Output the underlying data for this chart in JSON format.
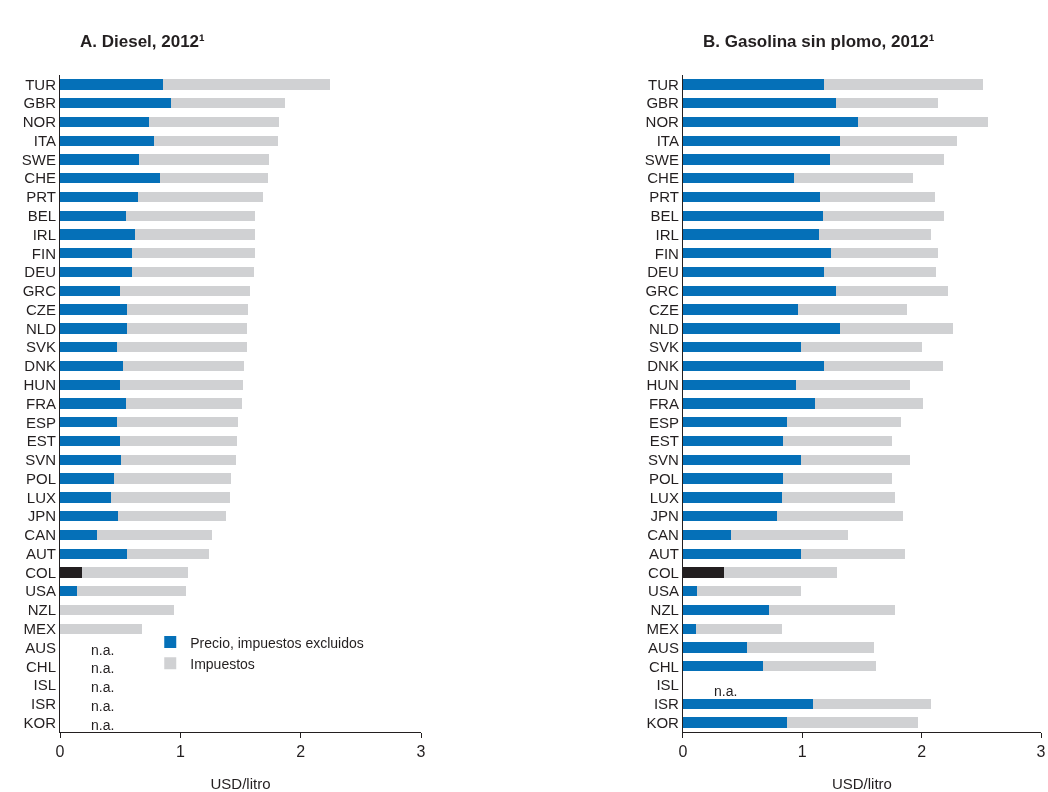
{
  "chart_data": [
    {
      "type": "bar",
      "orientation": "horizontal",
      "stacked": true,
      "title": "A. Diesel, 2012¹",
      "xlabel": "USD/litro",
      "categories": [
        "TUR",
        "GBR",
        "NOR",
        "ITA",
        "SWE",
        "CHE",
        "PRT",
        "BEL",
        "IRL",
        "FIN",
        "DEU",
        "GRC",
        "CZE",
        "NLD",
        "SVK",
        "DNK",
        "HUN",
        "FRA",
        "ESP",
        "EST",
        "SVN",
        "POL",
        "LUX",
        "JPN",
        "CAN",
        "AUT",
        "COL",
        "USA",
        "NZL",
        "MEX",
        "AUS",
        "CHL",
        "ISL",
        "ISR",
        "KOR"
      ],
      "series": [
        {
          "name": "Precio, impuestos excluidos",
          "color": "#0570b8",
          "colors": [
            "#0570b8",
            "#0570b8",
            "#0570b8",
            "#0570b8",
            "#0570b8",
            "#0570b8",
            "#0570b8",
            "#0570b8",
            "#0570b8",
            "#0570b8",
            "#0570b8",
            "#0570b8",
            "#0570b8",
            "#0570b8",
            "#0570b8",
            "#0570b8",
            "#0570b8",
            "#0570b8",
            "#0570b8",
            "#0570b8",
            "#0570b8",
            "#0570b8",
            "#0570b8",
            "#0570b8",
            "#0570b8",
            "#0570b8",
            "#231f20",
            "#0570b8",
            "#0570b8",
            "#0570b8",
            "#0570b8",
            "#0570b8",
            "#0570b8",
            "#0570b8",
            "#0570b8"
          ],
          "values": [
            0.86,
            0.92,
            0.74,
            0.78,
            0.66,
            0.83,
            0.65,
            0.55,
            0.62,
            0.6,
            0.6,
            0.5,
            0.56,
            0.56,
            0.47,
            0.52,
            0.5,
            0.55,
            0.47,
            0.5,
            0.51,
            0.45,
            0.42,
            0.48,
            0.31,
            0.56,
            0.18,
            0.14,
            null,
            null,
            null,
            null,
            null,
            null,
            null
          ]
        },
        {
          "name": "Impuestos",
          "color": "#d0d1d3",
          "values": [
            1.38,
            0.95,
            1.08,
            1.03,
            1.08,
            0.9,
            1.04,
            1.07,
            1.0,
            1.02,
            1.01,
            1.08,
            1.0,
            0.99,
            1.08,
            1.01,
            1.02,
            0.96,
            1.01,
            0.97,
            0.95,
            0.97,
            0.99,
            0.9,
            0.95,
            0.68,
            0.88,
            0.91,
            0.95,
            0.68,
            null,
            null,
            null,
            null,
            null
          ]
        }
      ],
      "xlim": [
        0,
        3
      ],
      "xticks": [
        0,
        1,
        2,
        3
      ],
      "legend": "bottom right",
      "annotations": [
        "n.a.",
        "n.a.",
        "n.a.",
        "n.a.",
        "n.a."
      ]
    },
    {
      "type": "bar",
      "orientation": "horizontal",
      "stacked": true,
      "title": "B. Gasolina sin plomo, 2012¹",
      "xlabel": "USD/litro",
      "categories": [
        "TUR",
        "GBR",
        "NOR",
        "ITA",
        "SWE",
        "CHE",
        "PRT",
        "BEL",
        "IRL",
        "FIN",
        "DEU",
        "GRC",
        "CZE",
        "NLD",
        "SVK",
        "DNK",
        "HUN",
        "FRA",
        "ESP",
        "EST",
        "SVN",
        "POL",
        "LUX",
        "JPN",
        "CAN",
        "AUT",
        "COL",
        "USA",
        "NZL",
        "MEX",
        "AUS",
        "CHL",
        "ISL",
        "ISR",
        "KOR"
      ],
      "series": [
        {
          "color": "#0570b8",
          "colors": [
            "#0570b8",
            "#0570b8",
            "#0570b8",
            "#0570b8",
            "#0570b8",
            "#0570b8",
            "#0570b8",
            "#0570b8",
            "#0570b8",
            "#0570b8",
            "#0570b8",
            "#0570b8",
            "#0570b8",
            "#0570b8",
            "#0570b8",
            "#0570b8",
            "#0570b8",
            "#0570b8",
            "#0570b8",
            "#0570b8",
            "#0570b8",
            "#0570b8",
            "#0570b8",
            "#0570b8",
            "#0570b8",
            "#0570b8",
            "#231f20",
            "#0570b8",
            "#0570b8",
            "#0570b8",
            "#0570b8",
            "#0570b8",
            "#0570b8",
            "#0570b8",
            "#0570b8"
          ],
          "values": [
            1.18,
            1.28,
            1.47,
            1.32,
            1.23,
            0.93,
            1.15,
            1.17,
            1.14,
            1.24,
            1.18,
            1.28,
            0.96,
            1.32,
            0.99,
            1.18,
            0.95,
            1.11,
            0.87,
            0.84,
            0.99,
            0.84,
            0.83,
            0.79,
            0.4,
            0.99,
            0.34,
            0.12,
            0.72,
            0.11,
            0.54,
            0.67,
            null,
            1.09,
            0.87
          ]
        },
        {
          "color": "#d0d1d3",
          "values": [
            1.33,
            0.86,
            1.09,
            0.98,
            0.96,
            1.0,
            0.96,
            1.02,
            0.94,
            0.9,
            0.94,
            0.94,
            0.92,
            0.94,
            1.01,
            1.0,
            0.95,
            0.9,
            0.96,
            0.91,
            0.91,
            0.91,
            0.95,
            1.05,
            0.98,
            0.87,
            0.95,
            0.87,
            1.06,
            0.72,
            1.06,
            0.95,
            null,
            0.99,
            1.1
          ]
        }
      ],
      "xlim": [
        0,
        3
      ],
      "xticks": [
        0,
        1,
        2,
        3
      ],
      "annotations": [
        "n.a."
      ]
    }
  ]
}
